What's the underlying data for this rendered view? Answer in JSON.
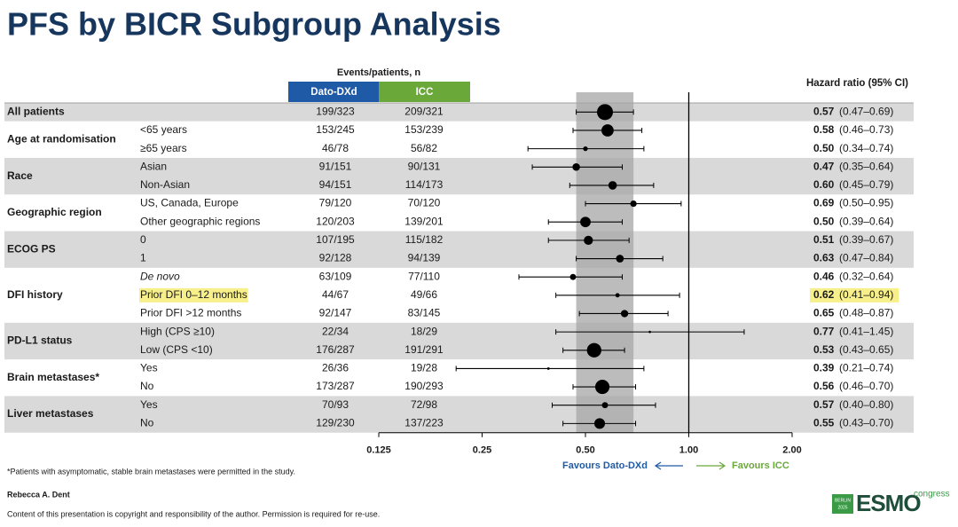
{
  "chart_data": {
    "type": "forest",
    "title": "PFS by BICR Subgroup Analysis",
    "events_header": "Events/patients, n",
    "arms": [
      {
        "name": "Dato-DXd",
        "color": "#1f5aa6"
      },
      {
        "name": "ICC",
        "color": "#6aa83a"
      }
    ],
    "hr_header": "Hazard ratio (95% CI)",
    "xscale": "log",
    "xlim": [
      0.125,
      2
    ],
    "xticks": [
      0.125,
      0.25,
      {
        "value": 0.5,
        "label": "0.50"
      },
      {
        "value": 1,
        "label": "1.00"
      },
      {
        "value": 2,
        "label": "2.00"
      }
    ],
    "reference": 1,
    "favours_left": "Favours Dato-DXd",
    "favours_right": "Favours ICC",
    "groups": [
      {
        "label": "All patients",
        "rows": [
          {
            "events": [
              "199/323",
              "209/321"
            ],
            "hr": 0.57,
            "hr_label": "0.57",
            "ci_low": 0.47,
            "ci_high": 0.69,
            "ci_label": "(0.47–0.69)"
          }
        ]
      },
      {
        "label": "Age at randomisation",
        "rows": [
          {
            "category": "<65 years",
            "events": [
              "153/245",
              "153/239"
            ],
            "hr": 0.58,
            "hr_label": "0.58",
            "ci_low": 0.46,
            "ci_high": 0.73,
            "ci_label": "(0.46–0.73)"
          },
          {
            "category": "≥65 years",
            "events": [
              "46/78",
              "56/82"
            ],
            "hr": 0.5,
            "hr_label": "0.50",
            "ci_low": 0.34,
            "ci_high": 0.74,
            "ci_label": "(0.34–0.74)"
          }
        ]
      },
      {
        "label": "Race",
        "rows": [
          {
            "category": "Asian",
            "events": [
              "91/151",
              "90/131"
            ],
            "hr": 0.47,
            "hr_label": "0.47",
            "ci_low": 0.35,
            "ci_high": 0.64,
            "ci_label": "(0.35–0.64)"
          },
          {
            "category": "Non-Asian",
            "events": [
              "94/151",
              "114/173"
            ],
            "hr": 0.6,
            "hr_label": "0.60",
            "ci_low": 0.45,
            "ci_high": 0.79,
            "ci_label": "(0.45–0.79)"
          }
        ]
      },
      {
        "label": "Geographic region",
        "rows": [
          {
            "category": "US, Canada, Europe",
            "events": [
              "79/120",
              "70/120"
            ],
            "hr": 0.69,
            "hr_label": "0.69",
            "ci_low": 0.5,
            "ci_high": 0.95,
            "ci_label": "(0.50–0.95)"
          },
          {
            "category": "Other geographic regions",
            "events": [
              "120/203",
              "139/201"
            ],
            "hr": 0.5,
            "hr_label": "0.50",
            "ci_low": 0.39,
            "ci_high": 0.64,
            "ci_label": "(0.39–0.64)"
          }
        ]
      },
      {
        "label": "ECOG PS",
        "rows": [
          {
            "category": "0",
            "events": [
              "107/195",
              "115/182"
            ],
            "hr": 0.51,
            "hr_label": "0.51",
            "ci_low": 0.39,
            "ci_high": 0.67,
            "ci_label": "(0.39–0.67)"
          },
          {
            "category": "1",
            "events": [
              "92/128",
              "94/139"
            ],
            "hr": 0.63,
            "hr_label": "0.63",
            "ci_low": 0.47,
            "ci_high": 0.84,
            "ci_label": "(0.47–0.84)"
          }
        ]
      },
      {
        "label": "DFI history",
        "rows": [
          {
            "category": "De novo",
            "italic": true,
            "events": [
              "63/109",
              "77/110"
            ],
            "hr": 0.46,
            "hr_label": "0.46",
            "ci_low": 0.32,
            "ci_high": 0.64,
            "ci_label": "(0.32–0.64)"
          },
          {
            "category": "Prior DFI 0–12 months",
            "highlight": true,
            "events": [
              "44/67",
              "49/66"
            ],
            "hr": 0.62,
            "hr_label": "0.62",
            "ci_low": 0.41,
            "ci_high": 0.94,
            "ci_label": "(0.41–0.94)"
          },
          {
            "category": "Prior DFI >12 months",
            "events": [
              "92/147",
              "83/145"
            ],
            "hr": 0.65,
            "hr_label": "0.65",
            "ci_low": 0.48,
            "ci_high": 0.87,
            "ci_label": "(0.48–0.87)"
          }
        ]
      },
      {
        "label": "PD-L1 status",
        "rows": [
          {
            "category": "High (CPS ≥10)",
            "events": [
              "22/34",
              "18/29"
            ],
            "hr": 0.77,
            "hr_label": "0.77",
            "ci_low": 0.41,
            "ci_high": 1.45,
            "ci_label": "(0.41–1.45)"
          },
          {
            "category": "Low (CPS <10)",
            "events": [
              "176/287",
              "191/291"
            ],
            "hr": 0.53,
            "hr_label": "0.53",
            "ci_low": 0.43,
            "ci_high": 0.65,
            "ci_label": "(0.43–0.65)"
          }
        ]
      },
      {
        "label": "Brain metastases*",
        "rows": [
          {
            "category": "Yes",
            "events": [
              "26/36",
              "19/28"
            ],
            "hr": 0.39,
            "hr_label": "0.39",
            "ci_low": 0.21,
            "ci_high": 0.74,
            "ci_label": "(0.21–0.74)"
          },
          {
            "category": "No",
            "events": [
              "173/287",
              "190/293"
            ],
            "hr": 0.56,
            "hr_label": "0.56",
            "ci_low": 0.46,
            "ci_high": 0.7,
            "ci_label": "(0.46–0.70)"
          }
        ]
      },
      {
        "label": "Liver metastases",
        "rows": [
          {
            "category": "Yes",
            "events": [
              "70/93",
              "72/98"
            ],
            "hr": 0.57,
            "hr_label": "0.57",
            "ci_low": 0.4,
            "ci_high": 0.8,
            "ci_label": "(0.40–0.80)"
          },
          {
            "category": "No",
            "events": [
              "129/230",
              "137/223"
            ],
            "hr": 0.55,
            "hr_label": "0.55",
            "ci_low": 0.43,
            "ci_high": 0.7,
            "ci_label": "(0.43–0.70)"
          }
        ]
      }
    ]
  },
  "footnote": "*Patients with asymptomatic, stable brain metastases were permitted in the study.",
  "author": "Rebecca A. Dent",
  "copyright": "Content of this presentation is copyright and responsibility of the author. Permission is required for re-use.",
  "logo": {
    "city": "BERLIN",
    "year": "2025",
    "name": "ESMO",
    "suffix": "congress"
  }
}
